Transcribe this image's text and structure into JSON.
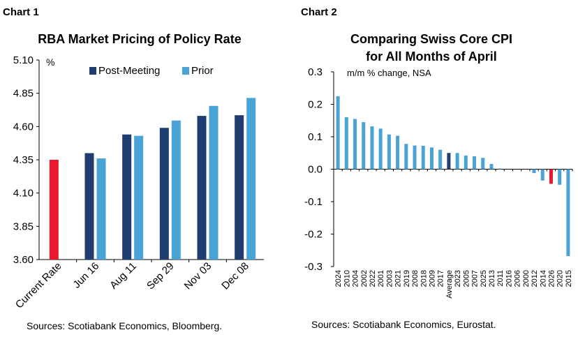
{
  "chart_data": [
    {
      "type": "bar",
      "panel_label": "Chart 1",
      "title": "RBA Market Pricing of Policy Rate",
      "unit_label": "%",
      "ylim": [
        3.6,
        5.1
      ],
      "yticks": [
        "5.10",
        "4.85",
        "4.60",
        "4.35",
        "4.10",
        "3.85",
        "3.60"
      ],
      "categories": [
        "Current Rate",
        "Jun 16",
        "Aug 11",
        "Sep 29",
        "Nov 03",
        "Dec 08"
      ],
      "current_rate": {
        "value": 4.35,
        "color": "#e8192c"
      },
      "series": [
        {
          "name": "Post-Meeting",
          "color": "#1f3d6e",
          "values": [
            null,
            4.4,
            4.54,
            4.59,
            4.68,
            4.685
          ]
        },
        {
          "name": "Prior",
          "color": "#4aa3d6",
          "values": [
            null,
            4.36,
            4.53,
            4.645,
            4.755,
            4.815
          ]
        }
      ],
      "legend_position": "top",
      "source": "Sources: Scotiabank Economics, Bloomberg."
    },
    {
      "type": "bar",
      "panel_label": "Chart 2",
      "title_lines": [
        "Comparing Swiss Core CPI",
        "for All Months of April"
      ],
      "subtitle": "m/m % change, NSA",
      "ylim": [
        -0.3,
        0.3
      ],
      "yticks": [
        "0.3",
        "0.2",
        "0.1",
        "0.0",
        "-0.1",
        "-0.2",
        "-0.3"
      ],
      "categories": [
        "2024",
        "2010",
        "2004",
        "2002",
        "2022",
        "2001",
        "2003",
        "2021",
        "2019",
        "2008",
        "2018",
        "2009",
        "2017",
        "Average",
        "2023",
        "2005",
        "2007",
        "2025",
        "2013",
        "2011",
        "2016",
        "2006",
        "2000",
        "2012",
        "2014",
        "2026",
        "2020",
        "2015"
      ],
      "values": [
        0.225,
        0.16,
        0.155,
        0.145,
        0.132,
        0.125,
        0.107,
        0.103,
        0.078,
        0.073,
        0.072,
        0.067,
        0.06,
        0.05,
        0.05,
        0.042,
        0.04,
        0.035,
        0.016,
        0.002,
        0.0,
        0.0,
        0.0,
        -0.012,
        -0.035,
        -0.045,
        -0.048,
        -0.268
      ],
      "colors": {
        "default": "#4aa3d6",
        "Average": "#1f3d6e",
        "2026": "#e8192c"
      },
      "source": "Sources: Scotiabank Economics, Eurostat."
    }
  ]
}
